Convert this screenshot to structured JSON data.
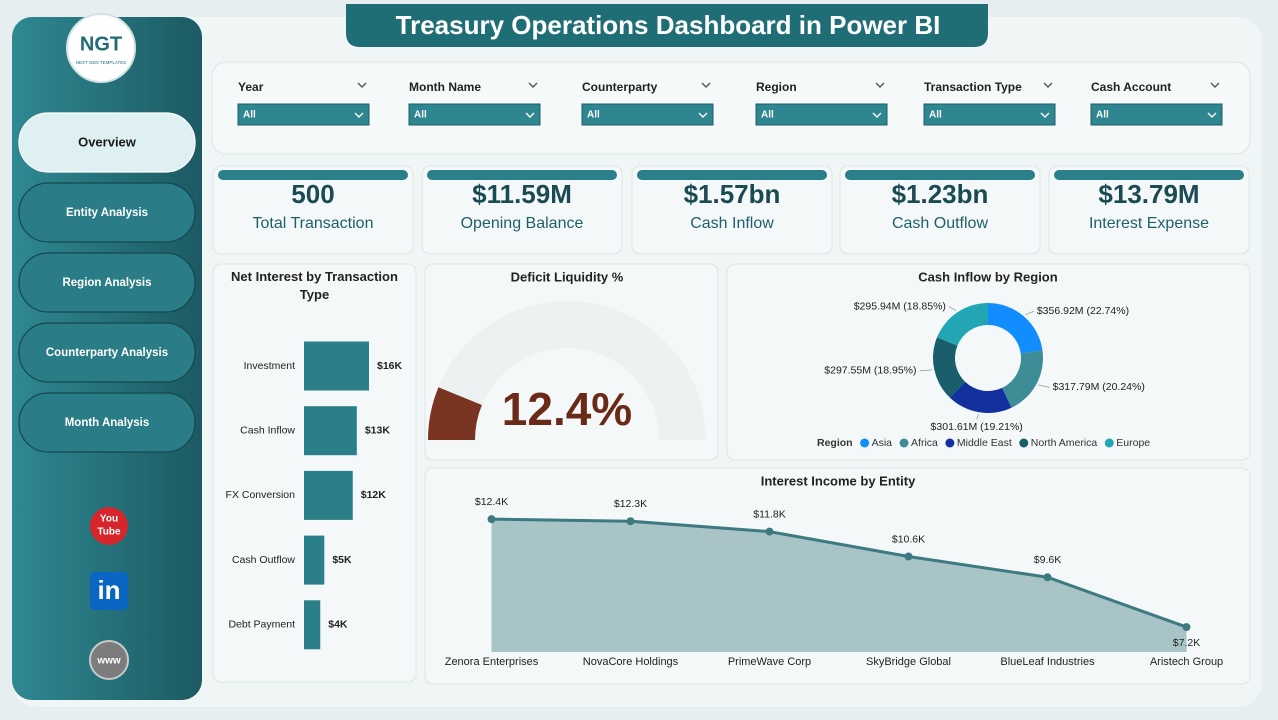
{
  "header": {
    "title": "Treasury Operations Dashboard in Power BI"
  },
  "logo": {
    "mark": "NGT",
    "tagline": "NEXT GEN TEMPLATES"
  },
  "nav": [
    "Overview",
    "Entity Analysis",
    "Region Analysis",
    "Counterparty Analysis",
    "Month Analysis"
  ],
  "filters": [
    {
      "label": "Year",
      "value": "All"
    },
    {
      "label": "Month Name",
      "value": "All"
    },
    {
      "label": "Counterparty",
      "value": "All"
    },
    {
      "label": "Region",
      "value": "All"
    },
    {
      "label": "Transaction Type",
      "value": "All"
    },
    {
      "label": "Cash Account",
      "value": "All"
    }
  ],
  "kpis": [
    {
      "value": "500",
      "label": "Total Transaction"
    },
    {
      "value": "$11.59M",
      "label": "Opening Balance"
    },
    {
      "value": "$1.57bn",
      "label": "Cash Inflow"
    },
    {
      "value": "$1.23bn",
      "label": "Cash Outflow"
    },
    {
      "value": "$13.79M",
      "label": "Interest Expense"
    }
  ],
  "social": {
    "youtube": [
      "You",
      "Tube"
    ],
    "linkedin": "in",
    "web": "www"
  },
  "chart_data": [
    {
      "type": "bar",
      "title": "Net Interest by Transaction Type",
      "categories": [
        "Investment",
        "Cash Inflow",
        "FX Conversion",
        "Cash Outflow",
        "Debt Payment"
      ],
      "values": [
        16000,
        13000,
        12000,
        5000,
        4000
      ],
      "value_labels": [
        "$16K",
        "$13K",
        "$12K",
        "$5K",
        "$4K"
      ],
      "color": "#2a7f89"
    },
    {
      "type": "gauge",
      "title": "Deficit Liquidity %",
      "values": [
        12.4
      ],
      "value_labels": [
        "12.4%"
      ],
      "ylim": [
        0,
        100
      ],
      "color": "#7a3522"
    },
    {
      "type": "donut",
      "title": "Cash Inflow by Region",
      "legend_title": "Region",
      "categories": [
        "Asia",
        "Africa",
        "Middle East",
        "North America",
        "Europe"
      ],
      "values": [
        356.92,
        317.79,
        301.61,
        297.55,
        295.94
      ],
      "value_labels": [
        "$356.92M (22.74%)",
        "$317.79M (20.24%)",
        "$301.61M (19.21%)",
        "$297.55M (18.95%)",
        "$295.94M (18.85%)"
      ],
      "colors": [
        "#118dff",
        "#3d8c96",
        "#12309e",
        "#1b5e6b",
        "#22a6b3"
      ]
    },
    {
      "type": "area",
      "title": "Interest Income by Entity",
      "categories": [
        "Zenora Enterprises",
        "NovaCore Holdings",
        "PrimeWave Corp",
        "SkyBridge Global",
        "BlueLeaf Industries",
        "Aristech Group"
      ],
      "values": [
        12400,
        12300,
        11800,
        10600,
        9600,
        7200
      ],
      "value_labels": [
        "$12.4K",
        "$12.3K",
        "$11.8K",
        "$10.6K",
        "$9.6K",
        "$7.2K"
      ],
      "ylim": [
        6000,
        12600
      ],
      "color": "#3d7a82"
    }
  ]
}
